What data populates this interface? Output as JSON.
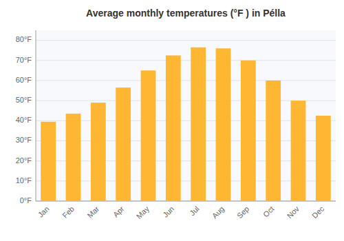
{
  "chart_data": {
    "type": "bar",
    "title": "Average monthly temperatures (°F ) in Pélla",
    "categories": [
      "Jan",
      "Feb",
      "Mar",
      "Apr",
      "May",
      "Jun",
      "Jul",
      "Aug",
      "Sep",
      "Oct",
      "Nov",
      "Dec"
    ],
    "values": [
      39.5,
      43.5,
      49.0,
      56.5,
      65.0,
      72.5,
      76.5,
      76.0,
      70.0,
      60.0,
      50.0,
      42.5
    ],
    "color": "#FFB733",
    "ylim": [
      0,
      85
    ],
    "yticks": [
      {
        "value": 0,
        "label": "0°F"
      },
      {
        "value": 10,
        "label": "10°F"
      },
      {
        "value": 20,
        "label": "20°F"
      },
      {
        "value": 30,
        "label": "30°F"
      },
      {
        "value": 40,
        "label": "40°F"
      },
      {
        "value": 50,
        "label": "50°F"
      },
      {
        "value": 60,
        "label": "60°F"
      },
      {
        "value": 70,
        "label": "70°F"
      },
      {
        "value": 80,
        "label": "80°F"
      }
    ],
    "grid": true
  }
}
